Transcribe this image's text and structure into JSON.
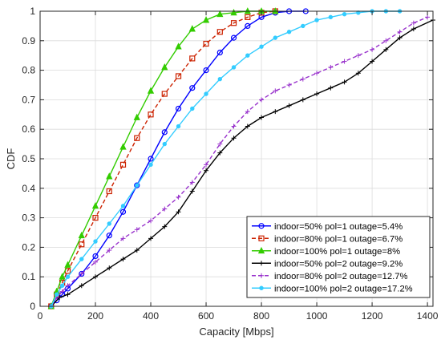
{
  "chart_data": {
    "type": "line",
    "title": "",
    "xlabel": "Capacity [Mbps]",
    "ylabel": "CDF",
    "xlim": [
      0,
      1420
    ],
    "ylim": [
      0,
      1
    ],
    "xticks": [
      0,
      200,
      400,
      600,
      800,
      1000,
      1200,
      1400
    ],
    "yticks": [
      0,
      0.1,
      0.2,
      0.3,
      0.4,
      0.5,
      0.6,
      0.7,
      0.8,
      0.9,
      1
    ],
    "xtick_labels": [
      "0",
      "200",
      "400",
      "600",
      "800",
      "1000",
      "1200",
      "1400"
    ],
    "ytick_labels": [
      "0",
      "0.1",
      "0.2",
      "0.3",
      "0.4",
      "0.5",
      "0.6",
      "0.7",
      "0.8",
      "0.9",
      "1"
    ],
    "grid": true,
    "legend_position": "bottom-right",
    "series": [
      {
        "name": "indoor=50% pol=1 outage=5.4%",
        "color": "#0000ff",
        "marker": "circle",
        "line_style": "solid",
        "x": [
          40,
          60,
          80,
          100,
          150,
          200,
          250,
          300,
          350,
          400,
          450,
          500,
          550,
          600,
          650,
          700,
          750,
          800,
          850,
          900,
          960
        ],
        "y": [
          0,
          0.02,
          0.04,
          0.06,
          0.11,
          0.17,
          0.24,
          0.32,
          0.41,
          0.5,
          0.59,
          0.67,
          0.74,
          0.8,
          0.86,
          0.91,
          0.95,
          0.98,
          0.995,
          1.0,
          1.0
        ]
      },
      {
        "name": "indoor=80% pol=1 outage=6.7%",
        "color": "#cc2200",
        "marker": "square",
        "line_style": "dashed",
        "x": [
          40,
          60,
          80,
          100,
          150,
          200,
          250,
          300,
          350,
          400,
          450,
          500,
          550,
          600,
          650,
          700,
          750,
          800,
          850
        ],
        "y": [
          0,
          0.04,
          0.08,
          0.12,
          0.21,
          0.3,
          0.39,
          0.48,
          0.57,
          0.65,
          0.72,
          0.78,
          0.84,
          0.89,
          0.93,
          0.96,
          0.98,
          0.995,
          1.0
        ]
      },
      {
        "name": "indoor=100% pol=1 outage=8%",
        "color": "#33cc00",
        "marker": "triangle",
        "line_style": "solid",
        "x": [
          40,
          60,
          80,
          100,
          150,
          200,
          250,
          300,
          350,
          400,
          450,
          500,
          550,
          600,
          650,
          700,
          750,
          800,
          850
        ],
        "y": [
          0,
          0.05,
          0.1,
          0.14,
          0.24,
          0.34,
          0.44,
          0.54,
          0.64,
          0.73,
          0.81,
          0.88,
          0.94,
          0.97,
          0.99,
          0.995,
          1.0,
          1.0,
          1.0
        ]
      },
      {
        "name": "indoor=50% pol=2 outage=9.2%",
        "color": "#000000",
        "marker": "plus",
        "line_style": "solid",
        "x": [
          40,
          70,
          100,
          150,
          200,
          250,
          300,
          350,
          400,
          450,
          500,
          550,
          600,
          650,
          700,
          750,
          800,
          850,
          900,
          950,
          1000,
          1050,
          1100,
          1150,
          1200,
          1250,
          1300,
          1350,
          1420
        ],
        "y": [
          0,
          0.03,
          0.04,
          0.07,
          0.1,
          0.13,
          0.16,
          0.19,
          0.23,
          0.27,
          0.32,
          0.39,
          0.46,
          0.52,
          0.57,
          0.61,
          0.64,
          0.66,
          0.68,
          0.7,
          0.72,
          0.74,
          0.76,
          0.79,
          0.83,
          0.87,
          0.91,
          0.94,
          0.97
        ]
      },
      {
        "name": "indoor=80% pol=2 outage=12.7%",
        "color": "#9933cc",
        "marker": "plus",
        "line_style": "dashed",
        "x": [
          40,
          60,
          80,
          100,
          150,
          200,
          250,
          300,
          350,
          400,
          450,
          500,
          550,
          600,
          650,
          700,
          750,
          800,
          850,
          900,
          950,
          1000,
          1050,
          1100,
          1150,
          1200,
          1250,
          1300,
          1350,
          1400
        ],
        "y": [
          0,
          0.03,
          0.05,
          0.07,
          0.11,
          0.15,
          0.19,
          0.23,
          0.26,
          0.29,
          0.33,
          0.37,
          0.42,
          0.48,
          0.55,
          0.61,
          0.66,
          0.7,
          0.73,
          0.75,
          0.77,
          0.79,
          0.81,
          0.83,
          0.85,
          0.87,
          0.9,
          0.93,
          0.96,
          0.98
        ]
      },
      {
        "name": "indoor=100% pol=2 outage=17.2%",
        "color": "#33ccff",
        "marker": "dot",
        "line_style": "solid",
        "x": [
          40,
          60,
          80,
          100,
          150,
          200,
          250,
          300,
          350,
          400,
          450,
          500,
          550,
          600,
          650,
          700,
          750,
          800,
          850,
          900,
          950,
          1000,
          1050,
          1100,
          1150,
          1200,
          1250,
          1300
        ],
        "y": [
          0,
          0.04,
          0.07,
          0.1,
          0.16,
          0.22,
          0.28,
          0.34,
          0.41,
          0.48,
          0.55,
          0.61,
          0.67,
          0.72,
          0.77,
          0.81,
          0.85,
          0.88,
          0.91,
          0.93,
          0.95,
          0.97,
          0.98,
          0.99,
          0.995,
          1.0,
          1.0,
          1.0
        ]
      }
    ]
  }
}
